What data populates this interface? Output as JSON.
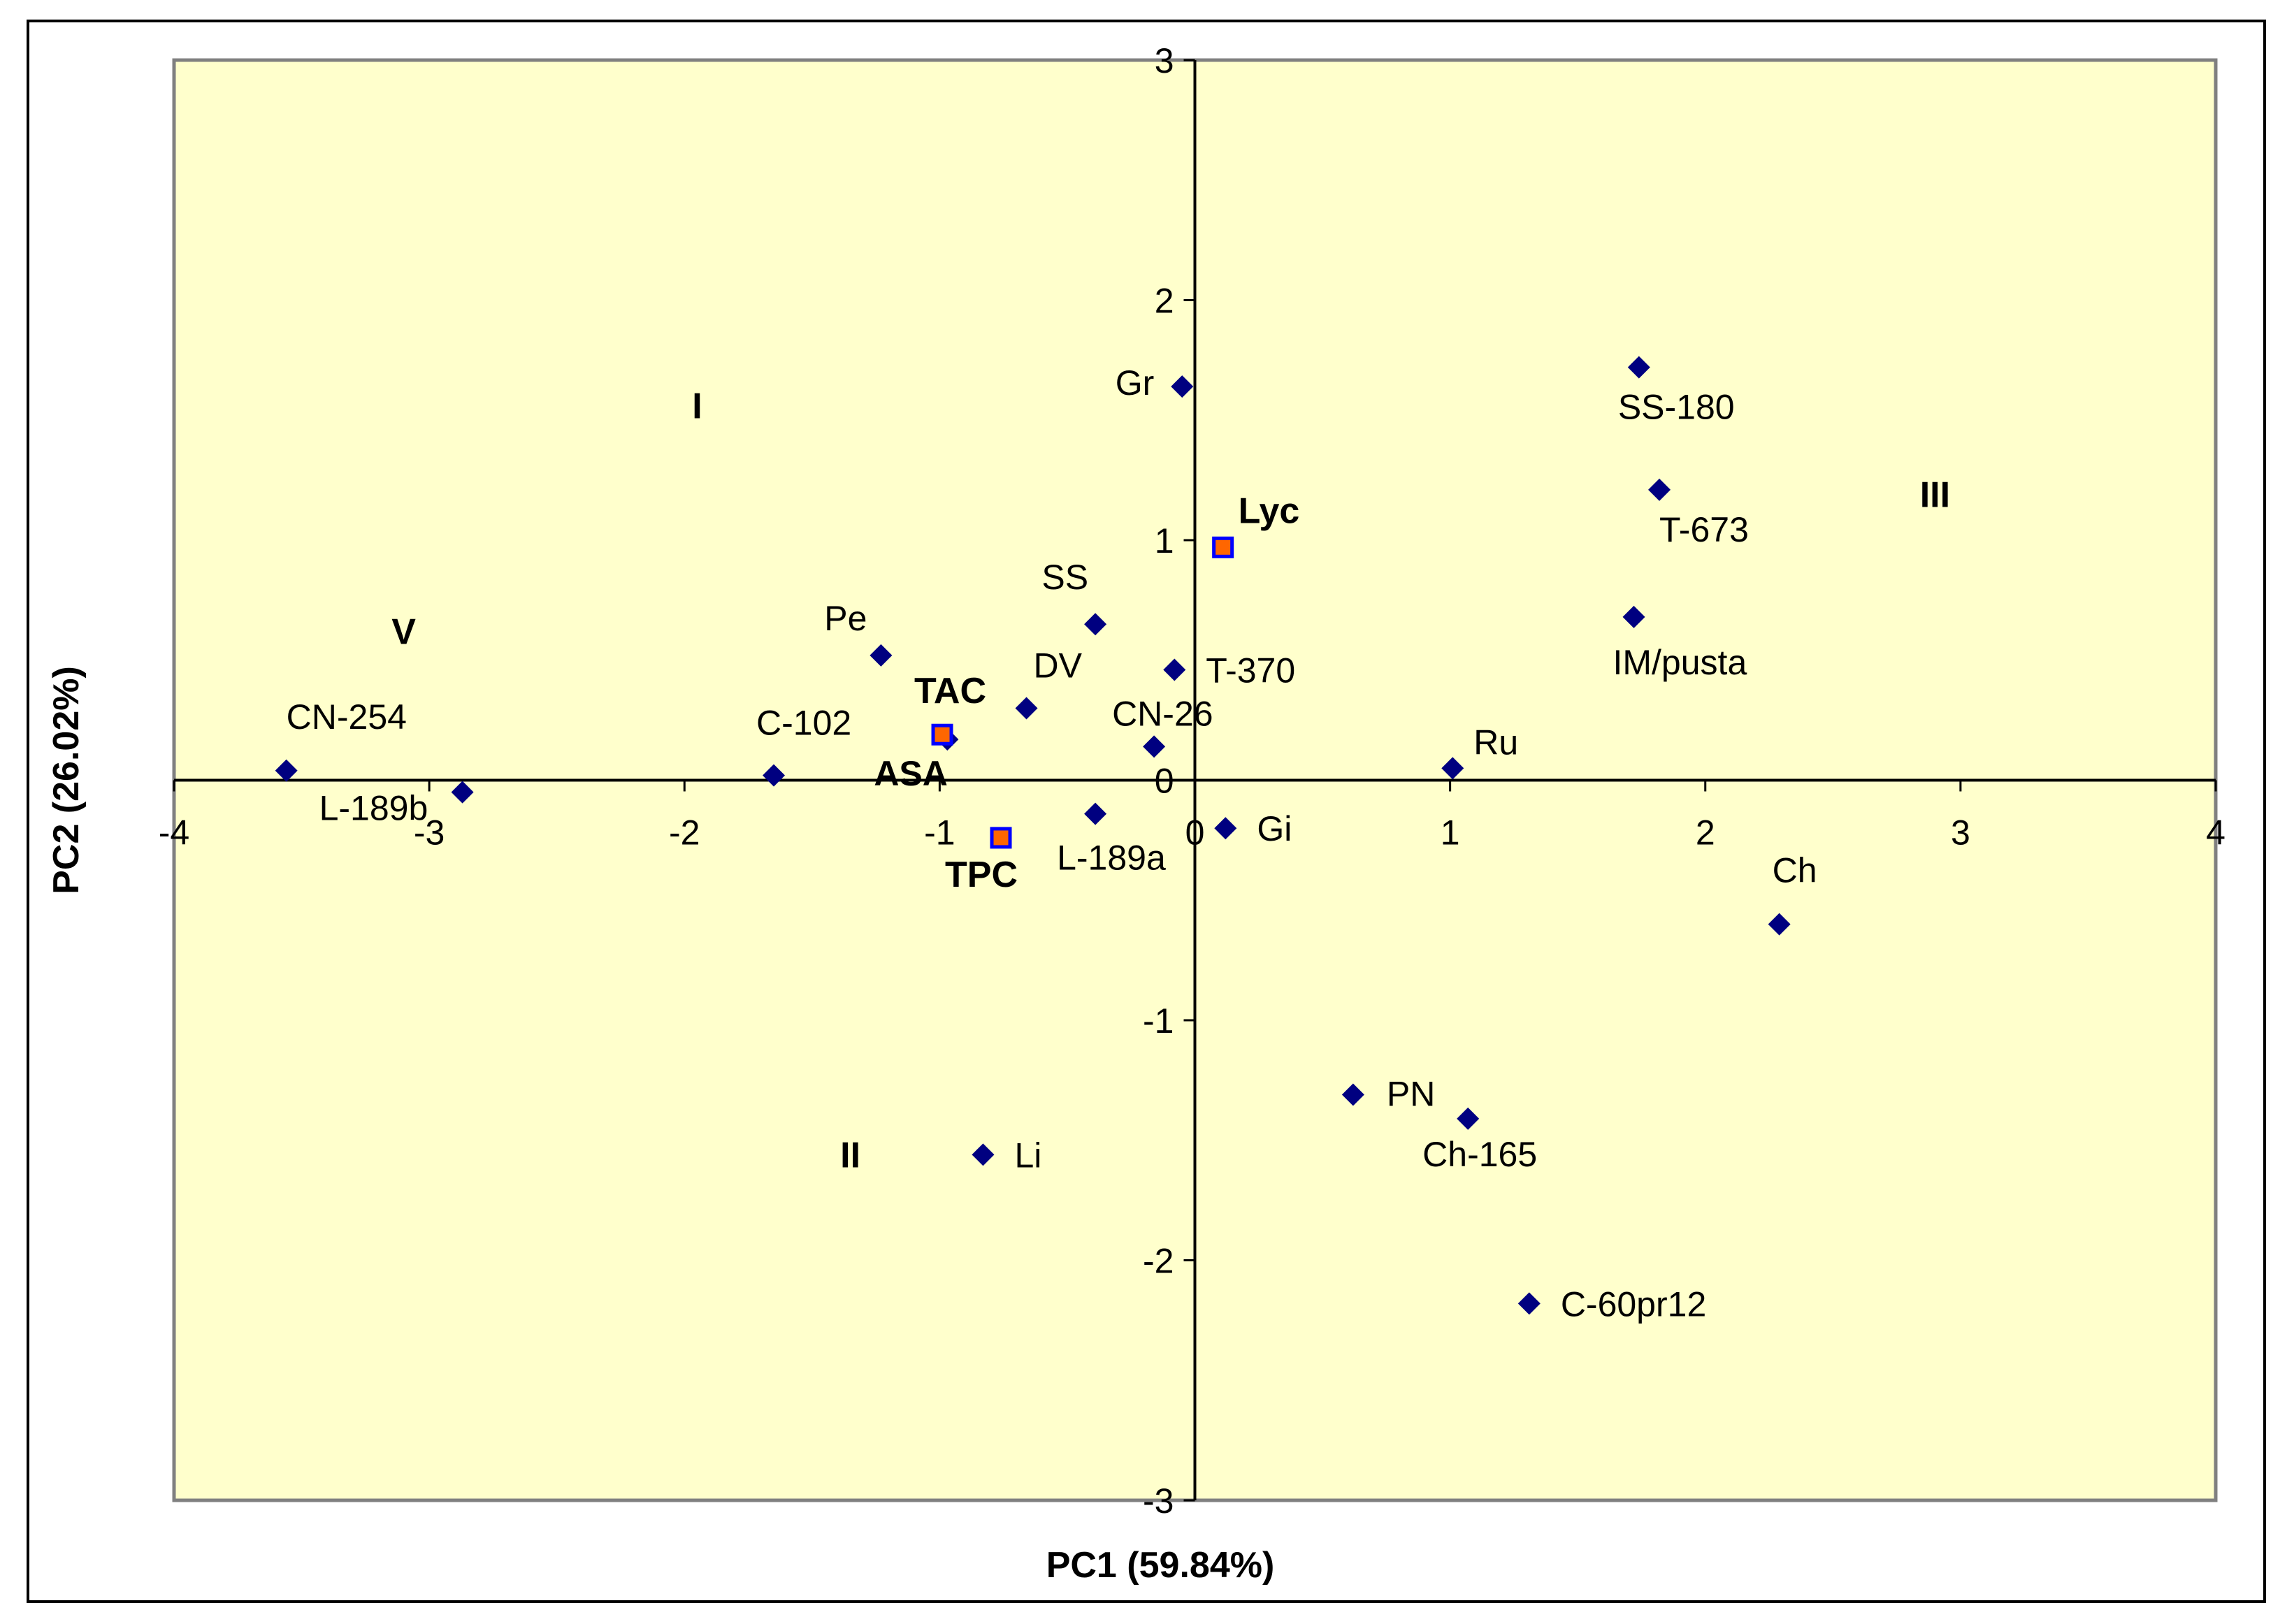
{
  "chart_data": {
    "type": "scatter",
    "title": "",
    "xlabel": "PC1 (59.84%)",
    "ylabel": "PC2 (26.02%)",
    "xlim": [
      -4,
      4
    ],
    "ylim": [
      -3,
      3
    ],
    "x_ticks": [
      "-4",
      "-3",
      "-2",
      "-1",
      "0",
      "1",
      "2",
      "3",
      "4"
    ],
    "y_ticks": [
      "3",
      "2",
      "1",
      "0",
      "-1",
      "-2",
      "-3"
    ],
    "grid": false,
    "legend": "none",
    "colors": {
      "plot_background": "#ffffcc",
      "sample_marker": "#000080",
      "variable_marker_fill": "#ff6600",
      "variable_marker_border": "#0000ff",
      "axis": "#000000",
      "frame": "#808080"
    },
    "series": [
      {
        "kind": "samples",
        "points": [
          {
            "label": "Gr",
            "x": -0.05,
            "y": 1.64
          },
          {
            "label": "SS-180",
            "x": 1.74,
            "y": 1.72
          },
          {
            "label": "T-673",
            "x": 1.82,
            "y": 1.21
          },
          {
            "label": "IM/pusta",
            "x": 1.72,
            "y": 0.68
          },
          {
            "label": "Pe",
            "x": -1.23,
            "y": 0.52
          },
          {
            "label": "SS",
            "x": -0.39,
            "y": 0.65
          },
          {
            "label": "T-370",
            "x": -0.08,
            "y": 0.46
          },
          {
            "label": "DV",
            "x": -0.66,
            "y": 0.3
          },
          {
            "label": "CN-26",
            "x": -0.16,
            "y": 0.14
          },
          {
            "label": "CN-254",
            "x": -3.56,
            "y": 0.04
          },
          {
            "label": "C-102",
            "x": -1.65,
            "y": 0.02
          },
          {
            "label": "L-189b",
            "x": -2.87,
            "y": -0.05
          },
          {
            "label": "ASA",
            "x": -0.97,
            "y": 0.17
          },
          {
            "label": "L-189a",
            "x": -0.39,
            "y": -0.14
          },
          {
            "label": "Gi",
            "x": 0.12,
            "y": -0.2
          },
          {
            "label": "Ru",
            "x": 1.01,
            "y": 0.05
          },
          {
            "label": "Ch",
            "x": 2.29,
            "y": -0.6
          },
          {
            "label": "PN",
            "x": 0.62,
            "y": -1.31
          },
          {
            "label": "Ch-165",
            "x": 1.07,
            "y": -1.41
          },
          {
            "label": "Li",
            "x": -0.83,
            "y": -1.56
          },
          {
            "label": "C-60pr12",
            "x": 1.31,
            "y": -2.18
          }
        ]
      },
      {
        "kind": "variables",
        "points": [
          {
            "label": "Lyc",
            "x": 0.11,
            "y": 0.97
          },
          {
            "label": "TAC",
            "x": -0.99,
            "y": 0.19
          },
          {
            "label": "TPC",
            "x": -0.76,
            "y": -0.24
          }
        ]
      }
    ],
    "annotations": [
      {
        "text": "I",
        "x": -1.95,
        "y": 1.56
      },
      {
        "text": "II",
        "x": -1.35,
        "y": -1.56
      },
      {
        "text": "III",
        "x": 2.9,
        "y": 1.19
      },
      {
        "text": "V",
        "x": -3.1,
        "y": 0.62
      }
    ]
  }
}
